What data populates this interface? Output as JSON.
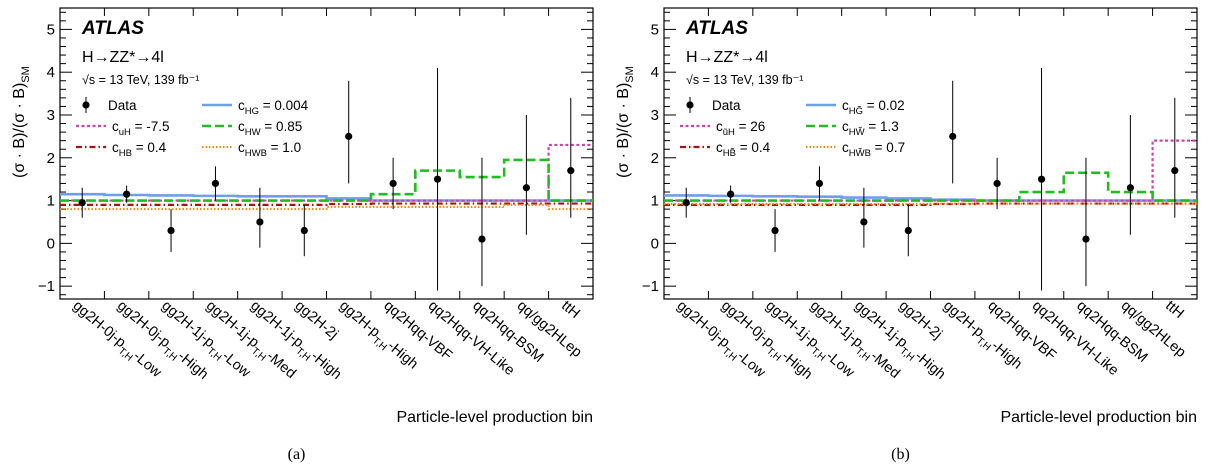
{
  "chart_data": [
    {
      "type": "step",
      "panel_label": "(a)",
      "atlas_label": "ATLAS",
      "process": "H→ZZ*→4l",
      "energy": "√s = 13 TeV, 139 fb⁻¹",
      "ylabel": "(σ · B)/(σ · B)",
      "ylabel_sub": "SM",
      "xlabel": "Particle-level production bin",
      "ylim": [
        -1.3,
        5.5
      ],
      "yticks": [
        -1,
        0,
        1,
        2,
        3,
        4,
        5
      ],
      "categories": [
        "gg2H-0j-p T,H-Low",
        "gg2H-0j-p T,H-High",
        "gg2H-1j-p T,H-Low",
        "gg2H-1j-p T,H-Med",
        "gg2H-1j-p T,H-High",
        "gg2H-2j",
        "gg2H-p T,H-High",
        "qq2Hqq-VBF",
        "qq2Hqq-VH-Like",
        "qq2Hqq-BSM",
        "qq/gg2HLep",
        "ttH"
      ],
      "data": {
        "name": "Data",
        "values": [
          0.95,
          1.15,
          0.3,
          1.4,
          0.5,
          0.3,
          2.5,
          1.4,
          1.5,
          0.1,
          1.3,
          1.7
        ],
        "err_low": [
          0.35,
          0.2,
          0.5,
          0.4,
          0.6,
          0.6,
          1.1,
          0.6,
          2.6,
          1.1,
          1.1,
          1.1
        ],
        "err_high": [
          0.35,
          0.2,
          0.5,
          0.4,
          0.8,
          0.6,
          1.3,
          0.6,
          2.6,
          1.9,
          1.7,
          1.7
        ]
      },
      "series": [
        {
          "name": "c",
          "sub": "HG",
          "value_text": " = 0.004",
          "color": "#6f9fe8",
          "dash": "",
          "width": 2.6,
          "values": [
            1.15,
            1.13,
            1.12,
            1.11,
            1.1,
            1.1,
            1.05,
            1.0,
            1.0,
            1.0,
            1.0,
            1.0
          ]
        },
        {
          "name": "c",
          "sub": "uH",
          "value_text": " = -7.5",
          "color": "#cc44aa",
          "dash": "3,2.5",
          "width": 2.2,
          "values": [
            1.0,
            1.0,
            1.0,
            1.0,
            1.0,
            1.0,
            1.0,
            1.0,
            1.0,
            1.0,
            1.0,
            2.3
          ]
        },
        {
          "name": "c",
          "sub": "HW",
          "value_text": " = 0.85",
          "color": "#22bb22",
          "dash": "9,4",
          "width": 2.6,
          "values": [
            1.0,
            1.0,
            1.0,
            1.0,
            1.0,
            1.0,
            1.0,
            1.15,
            1.7,
            1.55,
            1.95,
            1.0
          ]
        },
        {
          "name": "c",
          "sub": "HB",
          "value_text": " = 0.4",
          "color": "#aa1111",
          "dash": "6,3,1.5,3",
          "width": 2.2,
          "values": [
            0.9,
            0.9,
            0.9,
            0.9,
            0.9,
            0.9,
            0.92,
            0.93,
            0.93,
            0.93,
            0.93,
            0.93
          ]
        },
        {
          "name": "c",
          "sub": "HWB",
          "value_text": " = 1.0",
          "color": "#ee8811",
          "dash": "1.5,2",
          "width": 2.0,
          "values": [
            0.8,
            0.8,
            0.8,
            0.8,
            0.8,
            0.8,
            0.85,
            0.85,
            0.85,
            0.85,
            0.9,
            0.8
          ]
        }
      ]
    },
    {
      "type": "step",
      "panel_label": "(b)",
      "atlas_label": "ATLAS",
      "process": "H→ZZ*→4l",
      "energy": "√s = 13 TeV, 139 fb⁻¹",
      "ylabel": "(σ · B)/(σ · B)",
      "ylabel_sub": "SM",
      "xlabel": "Particle-level production bin",
      "ylim": [
        -1.3,
        5.5
      ],
      "yticks": [
        -1,
        0,
        1,
        2,
        3,
        4,
        5
      ],
      "categories": [
        "gg2H-0j-p T,H-Low",
        "gg2H-0j-p T,H-High",
        "gg2H-1j-p T,H-Low",
        "gg2H-1j-p T,H-Med",
        "gg2H-1j-p T,H-High",
        "gg2H-2j",
        "gg2H-p T,H-High",
        "qq2Hqq-VBF",
        "qq2Hqq-VH-Like",
        "qq2Hqq-BSM",
        "qq/gg2HLep",
        "ttH"
      ],
      "data": {
        "name": "Data",
        "values": [
          0.95,
          1.15,
          0.3,
          1.4,
          0.5,
          0.3,
          2.5,
          1.4,
          1.5,
          0.1,
          1.3,
          1.7
        ],
        "err_low": [
          0.35,
          0.2,
          0.5,
          0.4,
          0.6,
          0.6,
          1.1,
          0.6,
          2.6,
          1.1,
          1.1,
          1.1
        ],
        "err_high": [
          0.35,
          0.2,
          0.5,
          0.4,
          0.8,
          0.6,
          1.3,
          0.6,
          2.6,
          1.9,
          1.7,
          1.7
        ]
      },
      "series": [
        {
          "name": "c",
          "sub": "HG̃",
          "value_text": " = 0.02",
          "color": "#6f9fe8",
          "dash": "",
          "width": 2.6,
          "values": [
            1.12,
            1.11,
            1.1,
            1.09,
            1.07,
            1.05,
            1.02,
            1.0,
            1.0,
            1.0,
            1.0,
            1.0
          ]
        },
        {
          "name": "c",
          "sub": "ũH",
          "value_text": " = 26",
          "color": "#cc44aa",
          "dash": "3,2.5",
          "width": 2.2,
          "values": [
            1.0,
            1.0,
            1.0,
            1.0,
            1.0,
            1.0,
            1.0,
            1.0,
            1.0,
            1.0,
            1.0,
            2.4
          ]
        },
        {
          "name": "c",
          "sub": "HW̃",
          "value_text": " = 1.3",
          "color": "#22bb22",
          "dash": "9,4",
          "width": 2.6,
          "values": [
            1.0,
            1.0,
            1.0,
            1.0,
            1.0,
            1.0,
            1.0,
            1.0,
            1.2,
            1.65,
            1.2,
            1.0
          ]
        },
        {
          "name": "c",
          "sub": "HB̃",
          "value_text": " = 0.4",
          "color": "#aa1111",
          "dash": "6,3,1.5,3",
          "width": 2.2,
          "values": [
            0.9,
            0.9,
            0.9,
            0.9,
            0.9,
            0.9,
            0.92,
            0.93,
            0.93,
            0.93,
            0.93,
            0.93
          ]
        },
        {
          "name": "c",
          "sub": "HW̃B",
          "value_text": " = 0.7",
          "color": "#ee8811",
          "dash": "1.5,2",
          "width": 2.0,
          "values": [
            0.92,
            0.92,
            0.92,
            0.92,
            0.92,
            0.92,
            0.93,
            0.93,
            0.93,
            0.93,
            0.93,
            0.93
          ]
        }
      ]
    }
  ]
}
